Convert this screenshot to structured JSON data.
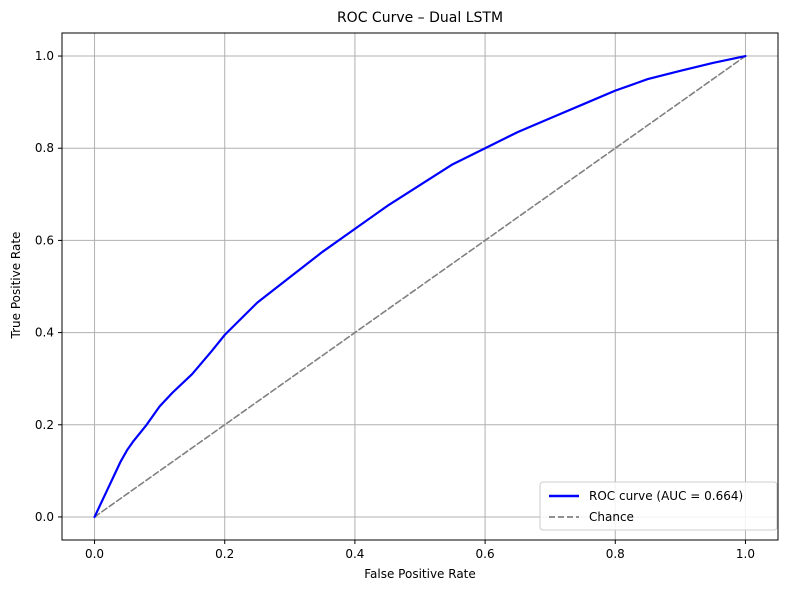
{
  "chart_data": {
    "type": "line",
    "title": "ROC Curve – Dual LSTM",
    "xlabel": "False Positive Rate",
    "ylabel": "True Positive Rate",
    "xlim": [
      -0.05,
      1.05
    ],
    "ylim": [
      -0.05,
      1.05
    ],
    "x_ticks": [
      "0.0",
      "0.2",
      "0.4",
      "0.6",
      "0.8",
      "1.0"
    ],
    "y_ticks": [
      "0.0",
      "0.2",
      "0.4",
      "0.6",
      "0.8",
      "1.0"
    ],
    "grid": true,
    "legend_position": "bottom-right",
    "series": [
      {
        "name": "ROC curve (AUC = 0.664)",
        "color": "#0000ff",
        "style": "solid",
        "x": [
          0.0,
          0.01,
          0.02,
          0.03,
          0.04,
          0.05,
          0.06,
          0.08,
          0.1,
          0.12,
          0.15,
          0.18,
          0.2,
          0.25,
          0.3,
          0.35,
          0.4,
          0.45,
          0.5,
          0.55,
          0.6,
          0.65,
          0.7,
          0.75,
          0.8,
          0.85,
          0.9,
          0.95,
          1.0
        ],
        "y": [
          0.0,
          0.03,
          0.06,
          0.09,
          0.12,
          0.145,
          0.165,
          0.2,
          0.24,
          0.27,
          0.31,
          0.36,
          0.395,
          0.465,
          0.52,
          0.575,
          0.625,
          0.675,
          0.72,
          0.765,
          0.8,
          0.835,
          0.865,
          0.895,
          0.925,
          0.95,
          0.968,
          0.985,
          1.0
        ]
      },
      {
        "name": "Chance",
        "color": "#808080",
        "style": "dashed",
        "x": [
          0.0,
          1.0
        ],
        "y": [
          0.0,
          1.0
        ]
      }
    ]
  }
}
